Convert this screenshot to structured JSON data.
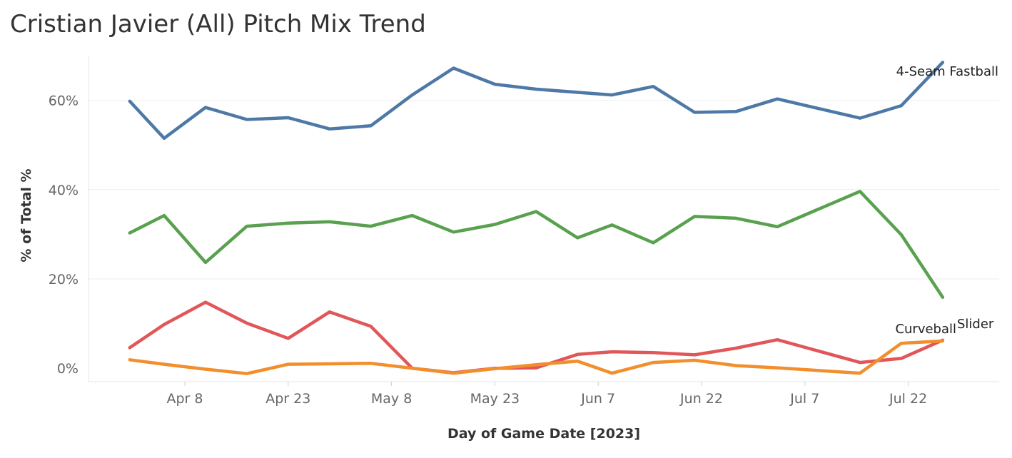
{
  "title": "Cristian Javier (All) Pitch Mix Trend",
  "chart_data": {
    "type": "line",
    "title": "Cristian Javier (All) Pitch Mix Trend",
    "xlabel": "Day of Game Date [2023]",
    "ylabel": "% of Total %",
    "x_ticks": [
      "Apr 8",
      "Apr 23",
      "May 8",
      "May 23",
      "Jun 7",
      "Jun 22",
      "Jul 7",
      "Jul 22"
    ],
    "y_ticks": [
      "0%",
      "20%",
      "40%",
      "60%"
    ],
    "ylim": [
      -3,
      70
    ],
    "grid": "horizontal",
    "x": [
      "2023-03-31",
      "2023-04-05",
      "2023-04-11",
      "2023-04-17",
      "2023-04-23",
      "2023-04-29",
      "2023-05-05",
      "2023-05-11",
      "2023-05-17",
      "2023-05-23",
      "2023-05-29",
      "2023-06-04",
      "2023-06-09",
      "2023-06-15",
      "2023-06-21",
      "2023-06-27",
      "2023-07-03",
      "2023-07-09",
      "2023-07-15",
      "2023-07-21",
      "2023-07-27"
    ],
    "series": [
      {
        "name": "4-Seam Fastball",
        "color": "#4e79a7",
        "x": [
          "2023-03-31",
          "2023-04-05",
          "2023-04-11",
          "2023-04-17",
          "2023-04-23",
          "2023-04-29",
          "2023-05-05",
          "2023-05-11",
          "2023-05-17",
          "2023-05-23",
          "2023-05-29",
          "2023-06-09",
          "2023-06-15",
          "2023-06-21",
          "2023-06-27",
          "2023-07-03",
          "2023-07-15",
          "2023-07-21",
          "2023-07-27"
        ],
        "values": [
          59.8,
          51.5,
          58.4,
          55.7,
          56.1,
          53.6,
          54.3,
          61.2,
          67.2,
          63.6,
          62.5,
          61.2,
          63.1,
          57.3,
          57.5,
          60.3,
          56.0,
          58.8,
          68.5
        ]
      },
      {
        "name": "",
        "color": "#59a14f",
        "x": [
          "2023-03-31",
          "2023-04-05",
          "2023-04-11",
          "2023-04-17",
          "2023-04-23",
          "2023-04-29",
          "2023-05-05",
          "2023-05-11",
          "2023-05-17",
          "2023-05-23",
          "2023-05-29",
          "2023-06-04",
          "2023-06-09",
          "2023-06-15",
          "2023-06-21",
          "2023-06-27",
          "2023-07-03",
          "2023-07-15",
          "2023-07-21",
          "2023-07-27"
        ],
        "values": [
          30.3,
          34.2,
          23.7,
          31.8,
          32.5,
          32.8,
          31.8,
          34.2,
          30.5,
          32.2,
          35.1,
          29.2,
          32.1,
          28.1,
          34.0,
          33.6,
          31.7,
          39.6,
          29.9,
          15.9
        ]
      },
      {
        "name": "Slider",
        "color": "#e15759",
        "x": [
          "2023-03-31",
          "2023-04-05",
          "2023-04-11",
          "2023-04-17",
          "2023-04-23",
          "2023-04-29",
          "2023-05-05",
          "2023-05-11",
          "2023-05-17",
          "2023-05-23",
          "2023-05-29",
          "2023-06-04",
          "2023-06-09",
          "2023-06-15",
          "2023-06-21",
          "2023-06-27",
          "2023-07-03",
          "2023-07-15",
          "2023-07-21",
          "2023-07-27"
        ],
        "values": [
          4.6,
          9.8,
          14.8,
          10.1,
          6.7,
          12.6,
          9.4,
          0.0,
          -1.0,
          0.0,
          0.1,
          3.1,
          3.7,
          3.5,
          3.0,
          4.5,
          6.4,
          1.3,
          2.2,
          6.3
        ]
      },
      {
        "name": "Curveball",
        "color": "#f28e2b",
        "x": [
          "2023-03-31",
          "2023-04-05",
          "2023-04-11",
          "2023-04-17",
          "2023-04-23",
          "2023-04-29",
          "2023-05-05",
          "2023-05-11",
          "2023-05-17",
          "2023-05-23",
          "2023-05-29",
          "2023-06-04",
          "2023-06-09",
          "2023-06-15",
          "2023-06-21",
          "2023-06-27",
          "2023-07-03",
          "2023-07-15",
          "2023-07-21",
          "2023-07-27"
        ],
        "values": [
          1.9,
          0.9,
          -0.2,
          -1.2,
          0.9,
          1.0,
          1.1,
          0.0,
          -1.1,
          -0.1,
          0.8,
          1.6,
          -1.1,
          1.3,
          1.8,
          0.6,
          0.1,
          -1.1,
          5.6,
          6.1
        ]
      }
    ]
  }
}
